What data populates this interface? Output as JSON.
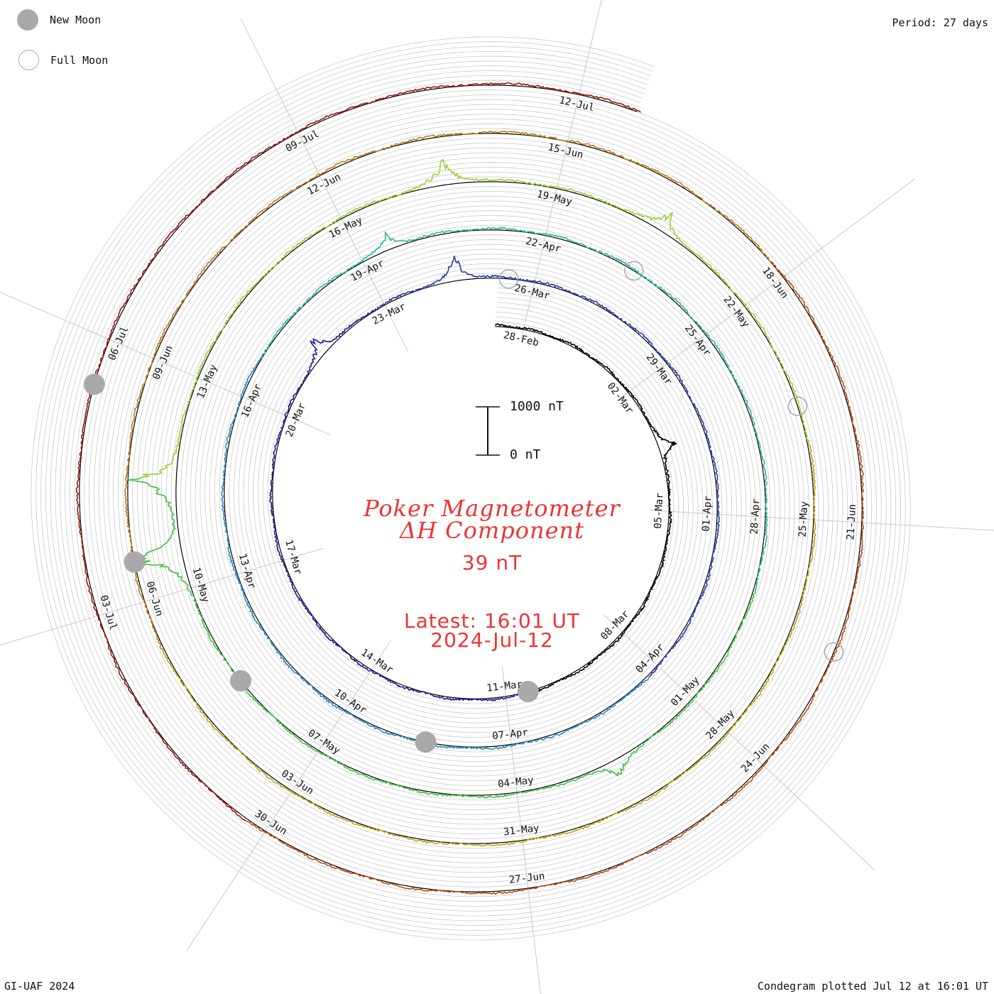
{
  "legend": {
    "new_moon": "New Moon",
    "full_moon": "Full Moon"
  },
  "period": "Period: 27 days",
  "credit": "GI-UAF 2024",
  "plotted": "Condegram plotted Jul 12 at 16:01 UT",
  "title_line1": "Poker Magnetometer",
  "title_line2": "ΔH Component",
  "current_value": "39 nT",
  "latest_line1": "Latest: 16:01 UT",
  "latest_line2": "2024-Jul-12",
  "scale": {
    "top": "1000 nT",
    "bottom": "0 nT"
  },
  "colors": {
    "text_red": "#ee3333",
    "moon": "#a9a9a9",
    "grid": "#c8c8c8"
  },
  "chart_data": {
    "type": "line",
    "subtype": "condegram spiral (polar time series)",
    "period_days": 27,
    "start_date": "2024-02-27",
    "end": "2024-07-12 16:01 UT",
    "date_labels": [
      {
        "date": "2024-02-28",
        "text": "28-Feb"
      },
      {
        "date": "2024-03-02",
        "text": "02-Mar"
      },
      {
        "date": "2024-03-05",
        "text": "05-Mar"
      },
      {
        "date": "2024-03-08",
        "text": "08-Mar"
      },
      {
        "date": "2024-03-11",
        "text": "11-Mar"
      },
      {
        "date": "2024-03-14",
        "text": "14-Mar"
      },
      {
        "date": "2024-03-17",
        "text": "17-Mar"
      },
      {
        "date": "2024-03-20",
        "text": "20-Mar"
      },
      {
        "date": "2024-03-23",
        "text": "23-Mar"
      },
      {
        "date": "2024-03-26",
        "text": "26-Mar"
      },
      {
        "date": "2024-03-29",
        "text": "29-Mar"
      },
      {
        "date": "2024-04-01",
        "text": "01-Apr"
      },
      {
        "date": "2024-04-04",
        "text": "04-Apr"
      },
      {
        "date": "2024-04-07",
        "text": "07-Apr"
      },
      {
        "date": "2024-04-10",
        "text": "10-Apr"
      },
      {
        "date": "2024-04-13",
        "text": "13-Apr"
      },
      {
        "date": "2024-04-16",
        "text": "16-Apr"
      },
      {
        "date": "2024-04-19",
        "text": "19-Apr"
      },
      {
        "date": "2024-04-22",
        "text": "22-Apr"
      },
      {
        "date": "2024-04-25",
        "text": "25-Apr"
      },
      {
        "date": "2024-04-28",
        "text": "28-Apr"
      },
      {
        "date": "2024-05-01",
        "text": "01-May"
      },
      {
        "date": "2024-05-04",
        "text": "04-May"
      },
      {
        "date": "2024-05-07",
        "text": "07-May"
      },
      {
        "date": "2024-05-10",
        "text": "10-May"
      },
      {
        "date": "2024-05-13",
        "text": "13-May"
      },
      {
        "date": "2024-05-16",
        "text": "16-May"
      },
      {
        "date": "2024-05-19",
        "text": "19-May"
      },
      {
        "date": "2024-05-22",
        "text": "22-May"
      },
      {
        "date": "2024-05-25",
        "text": "25-May"
      },
      {
        "date": "2024-05-28",
        "text": "28-May"
      },
      {
        "date": "2024-05-31",
        "text": "31-May"
      },
      {
        "date": "2024-06-03",
        "text": "03-Jun"
      },
      {
        "date": "2024-06-06",
        "text": "06-Jun"
      },
      {
        "date": "2024-06-09",
        "text": "09-Jun"
      },
      {
        "date": "2024-06-12",
        "text": "12-Jun"
      },
      {
        "date": "2024-06-15",
        "text": "15-Jun"
      },
      {
        "date": "2024-06-18",
        "text": "18-Jun"
      },
      {
        "date": "2024-06-21",
        "text": "21-Jun"
      },
      {
        "date": "2024-06-24",
        "text": "24-Jun"
      },
      {
        "date": "2024-06-27",
        "text": "27-Jun"
      },
      {
        "date": "2024-06-30",
        "text": "30-Jun"
      },
      {
        "date": "2024-07-03",
        "text": "03-Jul"
      },
      {
        "date": "2024-07-06",
        "text": "06-Jul"
      },
      {
        "date": "2024-07-09",
        "text": "09-Jul"
      },
      {
        "date": "2024-07-12",
        "text": "12-Jul"
      }
    ],
    "new_moons": [
      "2024-03-10",
      "2024-04-08",
      "2024-05-08",
      "2024-06-06",
      "2024-07-05"
    ],
    "full_moons": [
      "2024-03-25",
      "2024-04-23",
      "2024-05-23",
      "2024-06-22"
    ],
    "segment_colors": [
      "#000000",
      "#1a1a8c",
      "#2a3aa8",
      "#2f86c0",
      "#2fb5a0",
      "#3fbf3f",
      "#9acd32",
      "#b8a418",
      "#c07818",
      "#b84a10",
      "#a01010"
    ],
    "series": [
      {
        "name": "ΔH",
        "unit": "nT",
        "baseline_nT": 0,
        "current_nT": 39,
        "storm_peaks": [
          {
            "date": "2024-03-03",
            "peak_nT": 420
          },
          {
            "date": "2024-03-21",
            "peak_nT": 500
          },
          {
            "date": "2024-03-24",
            "peak_nT": 600
          },
          {
            "date": "2024-04-19",
            "peak_nT": 350
          },
          {
            "date": "2024-05-02",
            "peak_nT": 420
          },
          {
            "date": "2024-05-10",
            "peak_nT": 1250
          },
          {
            "date": "2024-05-11",
            "peak_nT": 1150
          },
          {
            "date": "2024-05-17",
            "peak_nT": 600
          },
          {
            "date": "2024-05-20",
            "peak_nT": 420
          }
        ]
      }
    ]
  }
}
